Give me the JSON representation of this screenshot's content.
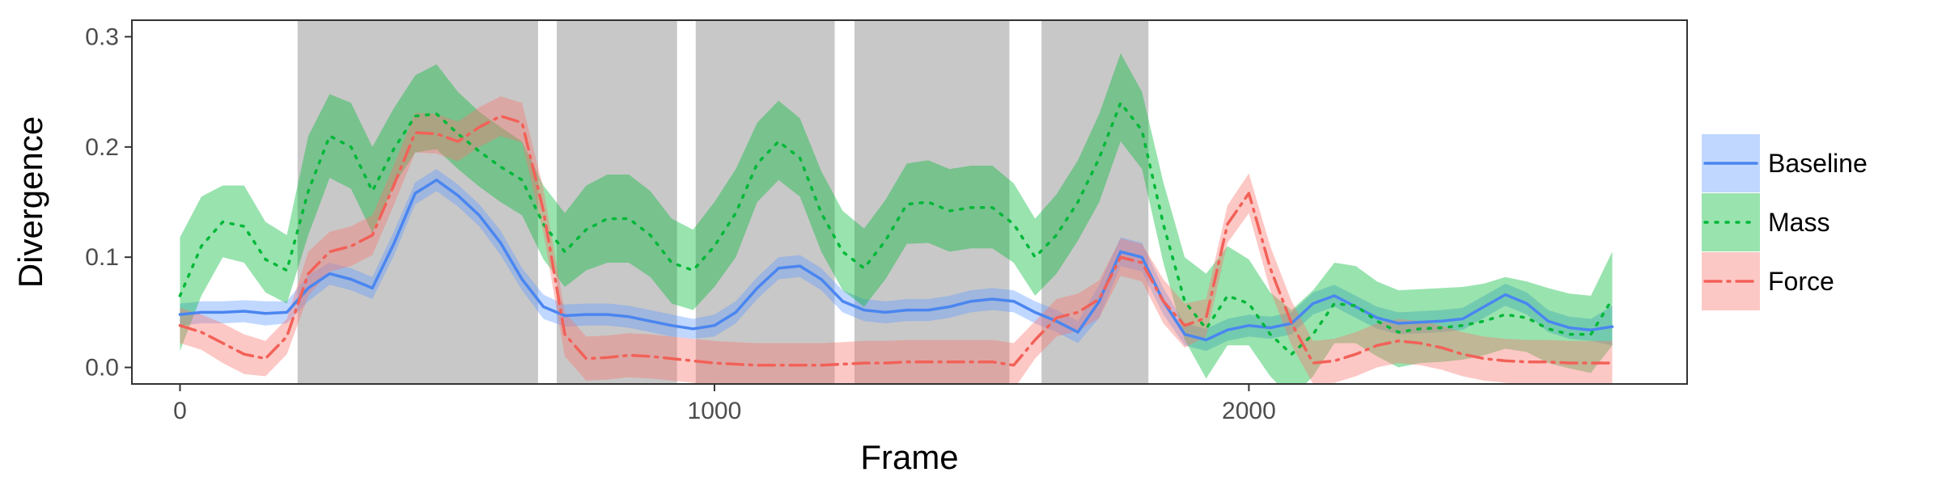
{
  "chart_data": {
    "type": "line",
    "title": "",
    "xlabel": "Frame",
    "ylabel": "Divergence",
    "xlim": [
      -90,
      2820
    ],
    "ylim": [
      -0.015,
      0.315
    ],
    "x_ticks": [
      0,
      1000,
      2000
    ],
    "x_tick_labels": [
      "0",
      "1000",
      "2000"
    ],
    "y_ticks": [
      0.0,
      0.1,
      0.2,
      0.3
    ],
    "y_tick_labels": [
      "0.0",
      "0.1",
      "0.2",
      "0.3"
    ],
    "grid": false,
    "legend_position": "right",
    "shaded_regions": [
      [
        220,
        670
      ],
      [
        705,
        930
      ],
      [
        965,
        1225
      ],
      [
        1262,
        1552
      ],
      [
        1612,
        1812
      ]
    ],
    "shaded_color": "#c8c8c8",
    "x": [
      0,
      40,
      80,
      120,
      160,
      200,
      240,
      280,
      320,
      360,
      400,
      440,
      480,
      520,
      560,
      600,
      640,
      680,
      720,
      760,
      800,
      840,
      880,
      920,
      960,
      1000,
      1040,
      1080,
      1120,
      1160,
      1200,
      1240,
      1280,
      1320,
      1360,
      1400,
      1440,
      1480,
      1520,
      1560,
      1600,
      1640,
      1680,
      1720,
      1760,
      1800,
      1840,
      1880,
      1920,
      1960,
      2000,
      2040,
      2080,
      2120,
      2160,
      2200,
      2240,
      2280,
      2320,
      2360,
      2400,
      2440,
      2480,
      2520,
      2560,
      2600,
      2640,
      2680
    ],
    "series": [
      {
        "name": "Baseline",
        "color": "#619cff",
        "line_color": "#4a86f0",
        "dash": "solid",
        "values": [
          0.048,
          0.05,
          0.05,
          0.051,
          0.049,
          0.05,
          0.072,
          0.085,
          0.08,
          0.072,
          0.112,
          0.158,
          0.17,
          0.156,
          0.138,
          0.113,
          0.08,
          0.055,
          0.047,
          0.048,
          0.048,
          0.046,
          0.042,
          0.038,
          0.035,
          0.038,
          0.05,
          0.072,
          0.09,
          0.092,
          0.08,
          0.06,
          0.052,
          0.05,
          0.052,
          0.052,
          0.055,
          0.06,
          0.062,
          0.06,
          0.05,
          0.042,
          0.032,
          0.06,
          0.105,
          0.1,
          0.06,
          0.03,
          0.025,
          0.034,
          0.038,
          0.036,
          0.04,
          0.058,
          0.065,
          0.055,
          0.045,
          0.04,
          0.041,
          0.042,
          0.044,
          0.055,
          0.066,
          0.058,
          0.042,
          0.036,
          0.034,
          0.037
        ],
        "lower": [
          0.038,
          0.04,
          0.04,
          0.041,
          0.038,
          0.04,
          0.06,
          0.075,
          0.07,
          0.062,
          0.101,
          0.148,
          0.16,
          0.146,
          0.128,
          0.102,
          0.07,
          0.044,
          0.037,
          0.038,
          0.038,
          0.036,
          0.032,
          0.028,
          0.026,
          0.028,
          0.04,
          0.062,
          0.08,
          0.082,
          0.07,
          0.05,
          0.042,
          0.04,
          0.042,
          0.042,
          0.045,
          0.05,
          0.052,
          0.05,
          0.04,
          0.032,
          0.022,
          0.045,
          0.092,
          0.087,
          0.048,
          0.02,
          0.015,
          0.024,
          0.028,
          0.026,
          0.03,
          0.048,
          0.055,
          0.045,
          0.035,
          0.03,
          0.031,
          0.032,
          0.034,
          0.045,
          0.056,
          0.048,
          0.032,
          0.026,
          0.024,
          0.02
        ],
        "upper": [
          0.058,
          0.06,
          0.06,
          0.061,
          0.06,
          0.06,
          0.084,
          0.095,
          0.09,
          0.082,
          0.123,
          0.168,
          0.18,
          0.166,
          0.148,
          0.124,
          0.09,
          0.066,
          0.057,
          0.058,
          0.058,
          0.056,
          0.052,
          0.048,
          0.044,
          0.048,
          0.06,
          0.082,
          0.1,
          0.102,
          0.09,
          0.07,
          0.062,
          0.06,
          0.062,
          0.062,
          0.065,
          0.07,
          0.072,
          0.07,
          0.06,
          0.052,
          0.042,
          0.075,
          0.118,
          0.113,
          0.072,
          0.04,
          0.035,
          0.044,
          0.048,
          0.046,
          0.05,
          0.068,
          0.075,
          0.065,
          0.055,
          0.05,
          0.051,
          0.052,
          0.054,
          0.065,
          0.076,
          0.068,
          0.052,
          0.046,
          0.044,
          0.056
        ]
      },
      {
        "name": "Mass",
        "color": "#00ba38",
        "line_color": "#00b838",
        "dash": "dotted",
        "values": [
          0.065,
          0.11,
          0.132,
          0.128,
          0.098,
          0.088,
          0.16,
          0.21,
          0.2,
          0.16,
          0.198,
          0.228,
          0.23,
          0.212,
          0.196,
          0.182,
          0.17,
          0.13,
          0.105,
          0.125,
          0.135,
          0.135,
          0.12,
          0.095,
          0.088,
          0.11,
          0.14,
          0.185,
          0.205,
          0.19,
          0.14,
          0.105,
          0.09,
          0.115,
          0.148,
          0.15,
          0.142,
          0.145,
          0.145,
          0.13,
          0.1,
          0.12,
          0.15,
          0.19,
          0.24,
          0.215,
          0.13,
          0.06,
          0.035,
          0.065,
          0.058,
          0.03,
          0.012,
          0.03,
          0.058,
          0.056,
          0.042,
          0.032,
          0.035,
          0.036,
          0.038,
          0.042,
          0.048,
          0.045,
          0.035,
          0.03,
          0.03,
          0.062
        ],
        "lower": [
          0.015,
          0.065,
          0.1,
          0.095,
          0.068,
          0.058,
          0.12,
          0.172,
          0.162,
          0.122,
          0.165,
          0.195,
          0.198,
          0.18,
          0.164,
          0.15,
          0.138,
          0.098,
          0.073,
          0.088,
          0.095,
          0.095,
          0.082,
          0.058,
          0.052,
          0.073,
          0.1,
          0.15,
          0.17,
          0.155,
          0.105,
          0.07,
          0.055,
          0.08,
          0.112,
          0.113,
          0.105,
          0.108,
          0.108,
          0.095,
          0.065,
          0.085,
          0.115,
          0.15,
          0.205,
          0.18,
          0.095,
          0.025,
          -0.01,
          0.02,
          0.02,
          -0.008,
          -0.028,
          -0.008,
          0.022,
          0.022,
          0.01,
          0.0,
          0.004,
          0.005,
          0.007,
          0.011,
          0.017,
          0.014,
          0.004,
          -0.001,
          -0.005,
          0.02
        ],
        "upper": [
          0.118,
          0.155,
          0.165,
          0.165,
          0.132,
          0.12,
          0.21,
          0.248,
          0.24,
          0.2,
          0.235,
          0.265,
          0.275,
          0.25,
          0.232,
          0.218,
          0.205,
          0.165,
          0.14,
          0.165,
          0.175,
          0.175,
          0.16,
          0.135,
          0.125,
          0.15,
          0.18,
          0.222,
          0.242,
          0.226,
          0.178,
          0.142,
          0.126,
          0.152,
          0.185,
          0.188,
          0.18,
          0.183,
          0.183,
          0.167,
          0.135,
          0.157,
          0.188,
          0.23,
          0.285,
          0.25,
          0.168,
          0.1,
          0.085,
          0.11,
          0.098,
          0.068,
          0.052,
          0.07,
          0.095,
          0.092,
          0.078,
          0.07,
          0.071,
          0.072,
          0.073,
          0.076,
          0.082,
          0.078,
          0.072,
          0.067,
          0.065,
          0.105
        ]
      },
      {
        "name": "Force",
        "color": "#f8766d",
        "line_color": "#f26158",
        "dash": "dashdot",
        "values": [
          0.038,
          0.032,
          0.022,
          0.012,
          0.008,
          0.028,
          0.085,
          0.105,
          0.11,
          0.12,
          0.165,
          0.213,
          0.212,
          0.205,
          0.218,
          0.228,
          0.222,
          0.142,
          0.03,
          0.008,
          0.009,
          0.011,
          0.01,
          0.008,
          0.006,
          0.004,
          0.003,
          0.002,
          0.002,
          0.002,
          0.002,
          0.003,
          0.004,
          0.004,
          0.005,
          0.005,
          0.005,
          0.005,
          0.005,
          0.002,
          0.025,
          0.045,
          0.05,
          0.062,
          0.1,
          0.095,
          0.06,
          0.038,
          0.045,
          0.13,
          0.158,
          0.09,
          0.04,
          0.004,
          0.006,
          0.012,
          0.02,
          0.024,
          0.022,
          0.018,
          0.012,
          0.008,
          0.006,
          0.005,
          0.005,
          0.004,
          0.004,
          0.004
        ],
        "lower": [
          0.022,
          0.016,
          0.004,
          -0.006,
          -0.008,
          0.012,
          0.065,
          0.087,
          0.092,
          0.102,
          0.147,
          0.195,
          0.194,
          0.187,
          0.2,
          0.21,
          0.204,
          0.122,
          0.01,
          -0.012,
          -0.011,
          -0.009,
          -0.01,
          -0.012,
          -0.014,
          -0.016,
          -0.017,
          -0.018,
          -0.018,
          -0.018,
          -0.018,
          -0.017,
          -0.016,
          -0.016,
          -0.015,
          -0.015,
          -0.015,
          -0.015,
          -0.015,
          -0.02,
          0.008,
          0.028,
          0.033,
          0.045,
          0.083,
          0.078,
          0.04,
          0.018,
          0.028,
          0.113,
          0.14,
          0.07,
          0.02,
          -0.015,
          -0.014,
          -0.008,
          0.0,
          0.004,
          0.002,
          -0.002,
          -0.008,
          -0.012,
          -0.014,
          -0.015,
          -0.015,
          -0.016,
          -0.016,
          -0.016
        ],
        "upper": [
          0.054,
          0.048,
          0.04,
          0.03,
          0.024,
          0.044,
          0.105,
          0.123,
          0.128,
          0.138,
          0.183,
          0.231,
          0.23,
          0.223,
          0.236,
          0.246,
          0.24,
          0.162,
          0.05,
          0.028,
          0.029,
          0.031,
          0.03,
          0.028,
          0.026,
          0.024,
          0.023,
          0.022,
          0.022,
          0.022,
          0.022,
          0.023,
          0.024,
          0.024,
          0.025,
          0.025,
          0.025,
          0.025,
          0.025,
          0.022,
          0.042,
          0.062,
          0.067,
          0.079,
          0.117,
          0.112,
          0.08,
          0.058,
          0.062,
          0.147,
          0.176,
          0.11,
          0.06,
          0.024,
          0.026,
          0.032,
          0.04,
          0.044,
          0.042,
          0.038,
          0.032,
          0.028,
          0.026,
          0.025,
          0.025,
          0.024,
          0.024,
          0.024
        ]
      }
    ]
  }
}
